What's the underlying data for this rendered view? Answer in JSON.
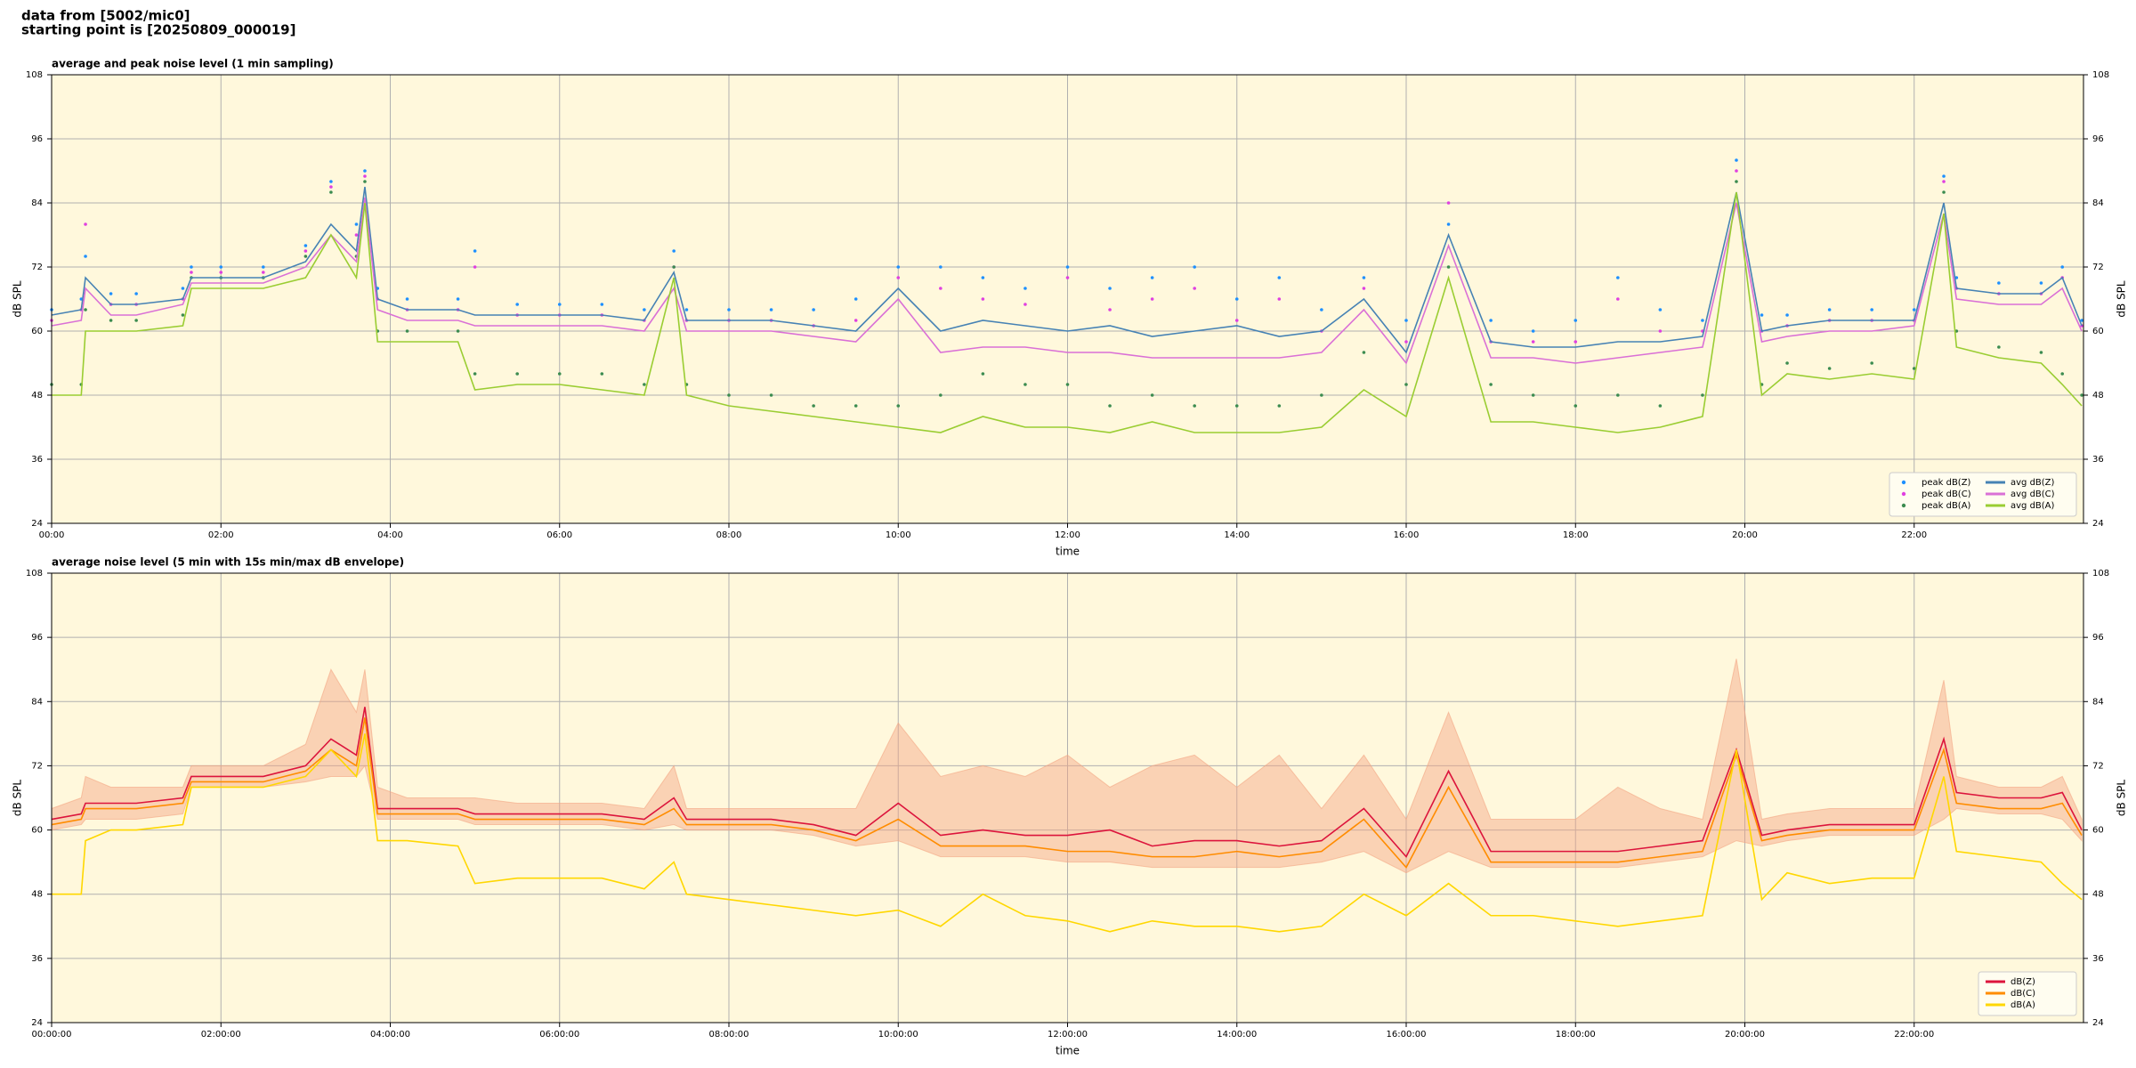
{
  "header": {
    "line1": "data from [5002/mic0]",
    "line2": "starting point is [20250809_000019]"
  },
  "chart_data": [
    {
      "type": "line",
      "title": "average and peak noise level (1 min sampling)",
      "xlabel": "time",
      "ylabel": "dB SPL",
      "y2label": "dB SPL",
      "x": [
        0,
        0.35,
        0.4,
        0.7,
        1,
        1.55,
        1.65,
        2,
        2.5,
        3,
        3.3,
        3.6,
        3.7,
        3.85,
        4.2,
        4.8,
        5,
        5.5,
        6,
        6.5,
        7,
        7.35,
        7.5,
        8,
        8.5,
        9,
        9.5,
        10,
        10.5,
        11,
        11.5,
        12,
        12.5,
        13,
        13.5,
        14,
        14.5,
        15,
        15.5,
        16,
        16.5,
        17,
        17.5,
        18,
        18.5,
        19,
        19.5,
        19.9,
        20.2,
        20.5,
        21,
        21.5,
        22,
        22.35,
        22.5,
        23,
        23.5,
        23.75,
        23.98
      ],
      "xlim": [
        0,
        24
      ],
      "ylim": [
        24,
        108
      ],
      "y2lim": [
        24,
        108
      ],
      "xticks": [
        {
          "value": 0,
          "label": "00:00"
        },
        {
          "value": 2,
          "label": "02:00"
        },
        {
          "value": 4,
          "label": "04:00"
        },
        {
          "value": 6,
          "label": "06:00"
        },
        {
          "value": 8,
          "label": "08:00"
        },
        {
          "value": 10,
          "label": "10:00"
        },
        {
          "value": 12,
          "label": "12:00"
        },
        {
          "value": 14,
          "label": "14:00"
        },
        {
          "value": 16,
          "label": "16:00"
        },
        {
          "value": 18,
          "label": "18:00"
        },
        {
          "value": 20,
          "label": "20:00"
        },
        {
          "value": 22,
          "label": "22:00"
        }
      ],
      "yticks": [
        24,
        36,
        48,
        60,
        72,
        84,
        96,
        108
      ],
      "y2ticks": [
        24,
        36,
        48,
        60,
        72,
        84,
        96,
        108
      ],
      "grid": true,
      "legend": "lower right",
      "background": "#fff8dc",
      "series": [
        {
          "name": "peak dB(Z)",
          "mode": "markers",
          "color": "#1e90ff",
          "values": [
            64,
            66,
            74,
            67,
            67,
            68,
            72,
            72,
            72,
            76,
            88,
            80,
            90,
            68,
            66,
            66,
            75,
            65,
            65,
            65,
            64,
            75,
            64,
            64,
            64,
            64,
            66,
            72,
            72,
            70,
            68,
            72,
            68,
            70,
            72,
            66,
            70,
            64,
            70,
            62,
            80,
            62,
            60,
            62,
            70,
            64,
            62,
            92,
            63,
            63,
            64,
            64,
            64,
            89,
            70,
            69,
            69,
            72,
            62
          ]
        },
        {
          "name": "peak dB(C)",
          "mode": "markers",
          "color": "#e040e0",
          "values": [
            62,
            64,
            80,
            65,
            65,
            66,
            71,
            71,
            71,
            75,
            87,
            78,
            89,
            66,
            64,
            64,
            72,
            63,
            63,
            63,
            62,
            72,
            62,
            62,
            62,
            61,
            62,
            70,
            68,
            66,
            65,
            70,
            64,
            66,
            68,
            62,
            66,
            60,
            68,
            58,
            84,
            58,
            58,
            58,
            66,
            60,
            60,
            90,
            60,
            61,
            62,
            62,
            62,
            88,
            68,
            67,
            67,
            70,
            61
          ]
        },
        {
          "name": "peak dB(A)",
          "mode": "markers",
          "color": "#3c8c50",
          "values": [
            50,
            50,
            64,
            62,
            62,
            63,
            70,
            70,
            70,
            74,
            86,
            74,
            88,
            60,
            60,
            60,
            52,
            52,
            52,
            52,
            50,
            72,
            50,
            48,
            48,
            46,
            46,
            46,
            48,
            52,
            50,
            50,
            46,
            48,
            46,
            46,
            46,
            48,
            56,
            50,
            72,
            50,
            48,
            46,
            48,
            46,
            48,
            88,
            50,
            54,
            53,
            54,
            53,
            86,
            60,
            57,
            56,
            52,
            48
          ]
        },
        {
          "name": "avg dB(Z)",
          "mode": "lines",
          "color": "#4682b4",
          "values": [
            63,
            64,
            70,
            65,
            65,
            66,
            70,
            70,
            70,
            73,
            80,
            75,
            87,
            66,
            64,
            64,
            63,
            63,
            63,
            63,
            62,
            71,
            62,
            62,
            62,
            61,
            60,
            68,
            60,
            62,
            61,
            60,
            61,
            59,
            60,
            61,
            59,
            60,
            66,
            56,
            78,
            58,
            57,
            57,
            58,
            58,
            59,
            86,
            60,
            61,
            62,
            62,
            62,
            84,
            68,
            67,
            67,
            70,
            61
          ]
        },
        {
          "name": "avg dB(C)",
          "mode": "lines",
          "color": "#da70d6",
          "values": [
            61,
            62,
            68,
            63,
            63,
            65,
            69,
            69,
            69,
            72,
            78,
            73,
            85,
            64,
            62,
            62,
            61,
            61,
            61,
            61,
            60,
            68,
            60,
            60,
            60,
            59,
            58,
            66,
            56,
            57,
            57,
            56,
            56,
            55,
            55,
            55,
            55,
            56,
            64,
            54,
            76,
            55,
            55,
            54,
            55,
            56,
            57,
            84,
            58,
            59,
            60,
            60,
            61,
            82,
            66,
            65,
            65,
            68,
            60
          ]
        },
        {
          "name": "avg dB(A)",
          "mode": "lines",
          "color": "#9acd32",
          "values": [
            48,
            48,
            60,
            60,
            60,
            61,
            68,
            68,
            68,
            70,
            78,
            70,
            84,
            58,
            58,
            58,
            49,
            50,
            50,
            49,
            48,
            70,
            48,
            46,
            45,
            44,
            43,
            42,
            41,
            44,
            42,
            42,
            41,
            43,
            41,
            41,
            41,
            42,
            49,
            44,
            70,
            43,
            43,
            42,
            41,
            42,
            44,
            86,
            48,
            52,
            51,
            52,
            51,
            82,
            57,
            55,
            54,
            50,
            46
          ]
        }
      ]
    },
    {
      "type": "line",
      "title": "average noise level (5 min with 15s min/max dB envelope)",
      "xlabel": "time",
      "ylabel": "dB SPL",
      "y2label": "dB SPL",
      "x": [
        0,
        0.35,
        0.4,
        0.7,
        1,
        1.55,
        1.65,
        2,
        2.5,
        3,
        3.3,
        3.6,
        3.7,
        3.85,
        4.2,
        4.8,
        5,
        5.5,
        6,
        6.5,
        7,
        7.35,
        7.5,
        8,
        8.5,
        9,
        9.5,
        10,
        10.5,
        11,
        11.5,
        12,
        12.5,
        13,
        13.5,
        14,
        14.5,
        15,
        15.5,
        16,
        16.5,
        17,
        17.5,
        18,
        18.5,
        19,
        19.5,
        19.9,
        20.2,
        20.5,
        21,
        21.5,
        22,
        22.35,
        22.5,
        23,
        23.5,
        23.75,
        23.98
      ],
      "xlim": [
        0,
        24
      ],
      "ylim": [
        24,
        108
      ],
      "y2lim": [
        24,
        108
      ],
      "xticks": [
        {
          "value": 0,
          "label": "00:00:00"
        },
        {
          "value": 2,
          "label": "02:00:00"
        },
        {
          "value": 4,
          "label": "04:00:00"
        },
        {
          "value": 6,
          "label": "06:00:00"
        },
        {
          "value": 8,
          "label": "08:00:00"
        },
        {
          "value": 10,
          "label": "10:00:00"
        },
        {
          "value": 12,
          "label": "12:00:00"
        },
        {
          "value": 14,
          "label": "14:00:00"
        },
        {
          "value": 16,
          "label": "16:00:00"
        },
        {
          "value": 18,
          "label": "18:00:00"
        },
        {
          "value": 20,
          "label": "20:00:00"
        },
        {
          "value": 22,
          "label": "22:00:00"
        }
      ],
      "yticks": [
        24,
        36,
        48,
        60,
        72,
        84,
        96,
        108
      ],
      "y2ticks": [
        24,
        36,
        48,
        60,
        72,
        84,
        96,
        108
      ],
      "grid": true,
      "legend": "lower right",
      "background": "#fff8dc",
      "envelope": {
        "color": "#f4a582",
        "upper": [
          64,
          66,
          70,
          68,
          68,
          68,
          72,
          72,
          72,
          76,
          90,
          82,
          90,
          68,
          66,
          66,
          66,
          65,
          65,
          65,
          64,
          72,
          64,
          64,
          64,
          64,
          64,
          80,
          70,
          72,
          70,
          74,
          68,
          72,
          74,
          68,
          74,
          64,
          74,
          62,
          82,
          62,
          62,
          62,
          68,
          64,
          62,
          92,
          62,
          63,
          64,
          64,
          64,
          88,
          70,
          68,
          68,
          70,
          62
        ],
        "lower": [
          60,
          61,
          62,
          62,
          62,
          63,
          68,
          68,
          68,
          69,
          70,
          70,
          72,
          62,
          62,
          62,
          61,
          61,
          61,
          61,
          60,
          61,
          60,
          60,
          60,
          59,
          57,
          58,
          55,
          55,
          55,
          54,
          54,
          53,
          53,
          53,
          53,
          54,
          56,
          52,
          56,
          53,
          53,
          53,
          53,
          54,
          55,
          58,
          57,
          58,
          59,
          59,
          59,
          62,
          64,
          63,
          63,
          62,
          58
        ]
      },
      "series": [
        {
          "name": "dB(Z)",
          "mode": "lines",
          "color": "#dc143c",
          "values": [
            62,
            63,
            65,
            65,
            65,
            66,
            70,
            70,
            70,
            72,
            77,
            74,
            83,
            64,
            64,
            64,
            63,
            63,
            63,
            63,
            62,
            66,
            62,
            62,
            62,
            61,
            59,
            65,
            59,
            60,
            59,
            59,
            60,
            57,
            58,
            58,
            57,
            58,
            64,
            55,
            71,
            56,
            56,
            56,
            56,
            57,
            58,
            75,
            59,
            60,
            61,
            61,
            61,
            77,
            67,
            66,
            66,
            67,
            60
          ]
        },
        {
          "name": "dB(C)",
          "mode": "lines",
          "color": "#ff8c00",
          "values": [
            61,
            62,
            64,
            64,
            64,
            65,
            69,
            69,
            69,
            71,
            75,
            72,
            81,
            63,
            63,
            63,
            62,
            62,
            62,
            62,
            61,
            64,
            61,
            61,
            61,
            60,
            58,
            62,
            57,
            57,
            57,
            56,
            56,
            55,
            55,
            56,
            55,
            56,
            62,
            53,
            68,
            54,
            54,
            54,
            54,
            55,
            56,
            74,
            58,
            59,
            60,
            60,
            60,
            75,
            65,
            64,
            64,
            65,
            59
          ]
        },
        {
          "name": "dB(A)",
          "mode": "lines",
          "color": "#ffd700",
          "values": [
            48,
            48,
            58,
            60,
            60,
            61,
            68,
            68,
            68,
            70,
            75,
            70,
            78,
            58,
            58,
            57,
            50,
            51,
            51,
            51,
            49,
            54,
            48,
            47,
            46,
            45,
            44,
            45,
            42,
            48,
            44,
            43,
            41,
            43,
            42,
            42,
            41,
            42,
            48,
            44,
            50,
            44,
            44,
            43,
            42,
            43,
            44,
            75,
            47,
            52,
            50,
            51,
            51,
            70,
            56,
            55,
            54,
            50,
            47
          ]
        }
      ]
    }
  ]
}
